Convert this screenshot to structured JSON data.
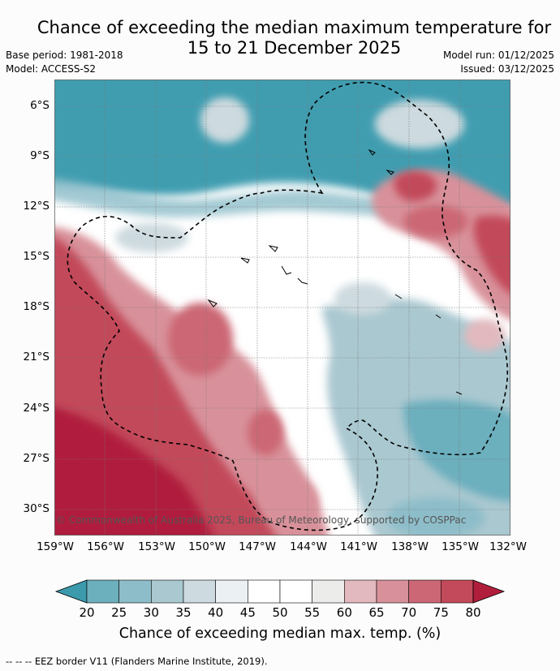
{
  "title_line1": "Chance of exceeding the median maximum temperature for",
  "title_line2": "15 to 21 December 2025",
  "base_period": "Base period: 1981-2018",
  "model": "Model: ACCESS-S2",
  "model_run": "Model run: 01/12/2025",
  "issued": "Issued: 03/12/2025",
  "copyright": "© Commonwealth of Australia 2025, Bureau of Meteorology, supported by COSPPac",
  "lat_labels": [
    "6°S",
    "9°S",
    "12°S",
    "15°S",
    "18°S",
    "21°S",
    "24°S",
    "27°S",
    "30°S"
  ],
  "lon_labels": [
    "159°W",
    "156°W",
    "153°W",
    "150°W",
    "147°W",
    "144°W",
    "141°W",
    "138°W",
    "135°W",
    "132°W"
  ],
  "colorbar": {
    "ticks": [
      "20",
      "25",
      "30",
      "35",
      "40",
      "45",
      "50",
      "55",
      "60",
      "65",
      "70",
      "75",
      "80"
    ],
    "colors": [
      "#3c9aad",
      "#6cafbd",
      "#8dbdc9",
      "#aac8d0",
      "#cddadf",
      "#ebf0f2",
      "#ffffff",
      "#ffffff",
      "#ececeb",
      "#e2b9be",
      "#d8919a",
      "#cc6775",
      "#c24a5a",
      "#b01e3c"
    ],
    "label": "Chance of exceeding median max. temp. (%)"
  },
  "footer": "--  --  -- EEZ border V11 (Flanders Marine Institute, 2019)."
}
